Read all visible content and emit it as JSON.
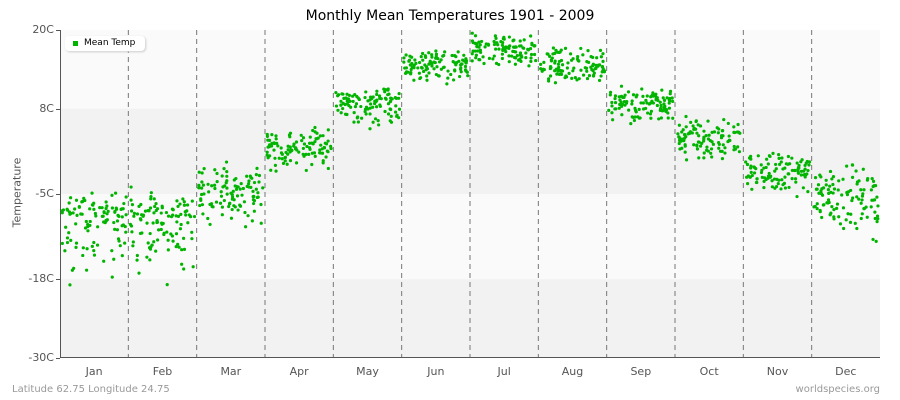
{
  "chart_data": {
    "type": "scatter",
    "title": "Monthly Mean Temperatures 1901 - 2009",
    "xlabel": "",
    "ylabel": "Temperature",
    "ylim": [
      -30,
      20
    ],
    "yticks": [
      "20C",
      "8C",
      "-5C",
      "-18C",
      "-30C"
    ],
    "ytick_values": [
      20,
      8,
      -5,
      -18,
      -30
    ],
    "categories": [
      "Jan",
      "Feb",
      "Mar",
      "Apr",
      "May",
      "Jun",
      "Jul",
      "Aug",
      "Sep",
      "Oct",
      "Nov",
      "Dec"
    ],
    "legend": [
      "Mean Temp"
    ],
    "legend_position": "top-left",
    "series": [
      {
        "name": "Mean Temp",
        "color": "#00b400",
        "approx_mean": [
          -8.5,
          -9.0,
          -4.5,
          2.0,
          9.0,
          14.5,
          17.0,
          14.5,
          9.0,
          3.5,
          -1.5,
          -5.5
        ],
        "approx_min": [
          -22.0,
          -20.0,
          -11.0,
          -3.0,
          4.0,
          10.0,
          13.0,
          11.0,
          5.0,
          -1.0,
          -7.0,
          -13.5
        ],
        "approx_max": [
          -3.0,
          -3.5,
          0.5,
          6.0,
          12.0,
          17.5,
          20.0,
          18.5,
          12.0,
          7.5,
          3.0,
          2.0
        ]
      }
    ],
    "grid": "horizontal bands + dashed vertical month separators"
  },
  "footer": {
    "left": "Latitude 62.75 Longitude 24.75",
    "right": "worldspecies.org"
  }
}
